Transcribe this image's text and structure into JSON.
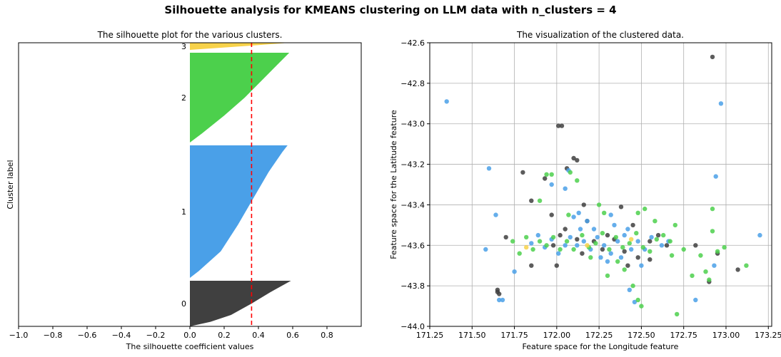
{
  "figure": {
    "suptitle": "Silhouette analysis for KMEANS clustering on LLM data with n_clusters = 4"
  },
  "chart_data": [
    {
      "type": "area",
      "title": "The silhouette plot for the various clusters.",
      "xlabel": "The silhouette coefficient values",
      "ylabel": "Cluster label",
      "xlim": [
        -1.0,
        1.0
      ],
      "xticks": [
        "−1.0",
        "−0.8",
        "−0.6",
        "−0.4",
        "−0.2",
        "0.0",
        "0.2",
        "0.4",
        "0.6",
        "0.8"
      ],
      "average_silhouette": 0.36,
      "clusters": [
        {
          "label": "0",
          "color": "#404040",
          "profile": [
            [
              0,
              0.0
            ],
            [
              0.1,
              0.12
            ],
            [
              0.25,
              0.24
            ],
            [
              0.5,
              0.36
            ],
            [
              0.75,
              0.47
            ],
            [
              1,
              0.59
            ]
          ]
        },
        {
          "label": "1",
          "color": "#4aa0e8",
          "profile": [
            [
              0,
              0.0
            ],
            [
              0.05,
              0.05
            ],
            [
              0.2,
              0.18
            ],
            [
              0.4,
              0.28
            ],
            [
              0.6,
              0.37
            ],
            [
              0.8,
              0.46
            ],
            [
              0.95,
              0.54
            ],
            [
              1,
              0.57
            ]
          ]
        },
        {
          "label": "2",
          "color": "#4cd04c",
          "profile": [
            [
              0,
              0.0
            ],
            [
              0.1,
              0.07
            ],
            [
              0.3,
              0.2
            ],
            [
              0.5,
              0.32
            ],
            [
              0.75,
              0.45
            ],
            [
              1,
              0.58
            ]
          ]
        },
        {
          "label": "3",
          "color": "#f7d24a",
          "profile": [
            [
              0,
              0.0
            ],
            [
              0.3,
              0.18
            ],
            [
              0.6,
              0.36
            ],
            [
              1,
              0.58
            ]
          ]
        }
      ],
      "grid": false
    },
    {
      "type": "scatter",
      "title": "The visualization of the clustered data.",
      "xlabel": "Feature space for the Longitude feature",
      "ylabel": "Feature space for the Latitude feature",
      "xlim": [
        171.25,
        173.27
      ],
      "ylim": [
        -44.0,
        -42.6
      ],
      "xticks": [
        "171.25",
        "171.50",
        "171.75",
        "172.00",
        "172.25",
        "172.50",
        "172.75",
        "173.00",
        "173.25"
      ],
      "yticks": [
        "−42.6",
        "−42.8",
        "−43.0",
        "−43.2",
        "−43.4",
        "−43.6",
        "−43.8",
        "−44.0"
      ],
      "grid": true,
      "series": [
        {
          "cluster": "0",
          "color": "#404040",
          "points": [
            [
              172.92,
              -42.67
            ],
            [
              171.65,
              -43.82
            ],
            [
              171.65,
              -43.83
            ],
            [
              171.66,
              -43.84
            ],
            [
              171.8,
              -43.24
            ],
            [
              171.85,
              -43.38
            ],
            [
              172.01,
              -43.01
            ],
            [
              172.03,
              -43.01
            ],
            [
              172.1,
              -43.17
            ],
            [
              172.12,
              -43.18
            ],
            [
              171.97,
              -43.45
            ],
            [
              171.93,
              -43.27
            ],
            [
              172.38,
              -43.41
            ],
            [
              172.3,
              -43.55
            ],
            [
              172.22,
              -43.58
            ],
            [
              172.05,
              -43.52
            ],
            [
              172.55,
              -43.58
            ],
            [
              172.65,
              -43.6
            ],
            [
              172.82,
              -43.6
            ],
            [
              172.95,
              -43.64
            ],
            [
              173.07,
              -43.72
            ],
            [
              172.9,
              -43.78
            ],
            [
              172.06,
              -43.22
            ],
            [
              171.98,
              -43.6
            ],
            [
              172.15,
              -43.64
            ],
            [
              172.4,
              -43.63
            ],
            [
              172.48,
              -43.66
            ],
            [
              172.18,
              -43.48
            ],
            [
              172.12,
              -43.57
            ],
            [
              172.34,
              -43.57
            ],
            [
              171.7,
              -43.56
            ],
            [
              171.85,
              -43.7
            ],
            [
              172.6,
              -43.55
            ],
            [
              172.42,
              -43.7
            ],
            [
              172.02,
              -43.55
            ],
            [
              172.27,
              -43.62
            ],
            [
              172.55,
              -43.67
            ],
            [
              172.16,
              -43.4
            ],
            [
              172.0,
              -43.7
            ],
            [
              172.45,
              -43.5
            ]
          ]
        },
        {
          "cluster": "1",
          "color": "#4aa0e8",
          "points": [
            [
              171.35,
              -42.89
            ],
            [
              172.97,
              -42.9
            ],
            [
              172.94,
              -43.26
            ],
            [
              171.6,
              -43.22
            ],
            [
              171.64,
              -43.45
            ],
            [
              173.2,
              -43.55
            ],
            [
              171.66,
              -43.87
            ],
            [
              171.68,
              -43.87
            ],
            [
              171.58,
              -43.62
            ],
            [
              171.97,
              -43.3
            ],
            [
              172.05,
              -43.32
            ],
            [
              172.07,
              -43.23
            ],
            [
              172.13,
              -43.44
            ],
            [
              172.32,
              -43.45
            ],
            [
              172.43,
              -43.82
            ],
            [
              172.46,
              -43.88
            ],
            [
              172.5,
              -43.7
            ],
            [
              172.82,
              -43.87
            ],
            [
              172.93,
              -43.7
            ],
            [
              171.75,
              -43.73
            ],
            [
              172.08,
              -43.56
            ],
            [
              172.12,
              -43.6
            ],
            [
              172.16,
              -43.58
            ],
            [
              172.2,
              -43.62
            ],
            [
              172.24,
              -43.56
            ],
            [
              172.28,
              -43.6
            ],
            [
              172.32,
              -43.64
            ],
            [
              172.36,
              -43.58
            ],
            [
              172.4,
              -43.55
            ],
            [
              172.44,
              -43.62
            ],
            [
              172.05,
              -43.6
            ],
            [
              172.01,
              -43.64
            ],
            [
              171.97,
              -43.57
            ],
            [
              171.93,
              -43.61
            ],
            [
              171.89,
              -43.55
            ],
            [
              171.85,
              -43.59
            ],
            [
              172.48,
              -43.58
            ],
            [
              172.52,
              -43.62
            ],
            [
              172.56,
              -43.56
            ],
            [
              172.14,
              -43.52
            ],
            [
              172.18,
              -43.48
            ],
            [
              172.1,
              -43.46
            ],
            [
              172.22,
              -43.52
            ],
            [
              172.26,
              -43.66
            ],
            [
              172.3,
              -43.68
            ],
            [
              172.38,
              -43.66
            ],
            [
              172.42,
              -43.52
            ],
            [
              172.34,
              -43.5
            ],
            [
              172.62,
              -43.6
            ],
            [
              172.66,
              -43.58
            ]
          ]
        },
        {
          "cluster": "2",
          "color": "#4cd04c",
          "points": [
            [
              172.71,
              -43.94
            ],
            [
              172.95,
              -43.63
            ],
            [
              172.99,
              -43.61
            ],
            [
              173.12,
              -43.7
            ],
            [
              172.88,
              -43.73
            ],
            [
              172.9,
              -43.77
            ],
            [
              172.85,
              -43.65
            ],
            [
              172.92,
              -43.42
            ],
            [
              172.92,
              -43.53
            ],
            [
              172.8,
              -43.75
            ],
            [
              172.75,
              -43.62
            ],
            [
              172.68,
              -43.65
            ],
            [
              172.5,
              -43.9
            ],
            [
              172.48,
              -43.87
            ],
            [
              172.45,
              -43.8
            ],
            [
              172.4,
              -43.72
            ],
            [
              172.3,
              -43.75
            ],
            [
              172.25,
              -43.4
            ],
            [
              172.12,
              -43.28
            ],
            [
              172.08,
              -43.24
            ],
            [
              171.97,
              -43.25
            ],
            [
              171.94,
              -43.25
            ],
            [
              171.9,
              -43.38
            ],
            [
              172.07,
              -43.45
            ],
            [
              172.15,
              -43.55
            ],
            [
              172.19,
              -43.61
            ],
            [
              172.23,
              -43.59
            ],
            [
              172.27,
              -43.54
            ],
            [
              172.31,
              -43.62
            ],
            [
              172.35,
              -43.56
            ],
            [
              172.39,
              -43.61
            ],
            [
              172.43,
              -43.59
            ],
            [
              172.47,
              -43.54
            ],
            [
              172.51,
              -43.61
            ],
            [
              172.55,
              -43.63
            ],
            [
              172.59,
              -43.57
            ],
            [
              172.63,
              -43.55
            ],
            [
              172.67,
              -43.58
            ],
            [
              172.1,
              -43.62
            ],
            [
              172.06,
              -43.58
            ],
            [
              172.02,
              -43.62
            ],
            [
              171.98,
              -43.56
            ],
            [
              171.94,
              -43.6
            ],
            [
              171.9,
              -43.58
            ],
            [
              171.86,
              -43.62
            ],
            [
              171.82,
              -43.56
            ],
            [
              171.78,
              -43.64
            ],
            [
              171.74,
              -43.58
            ],
            [
              172.2,
              -43.66
            ],
            [
              172.36,
              -43.68
            ],
            [
              172.28,
              -43.44
            ],
            [
              172.48,
              -43.44
            ],
            [
              172.52,
              -43.42
            ],
            [
              172.58,
              -43.48
            ],
            [
              172.7,
              -43.5
            ]
          ]
        },
        {
          "cluster": "3",
          "color": "#f7d24a",
          "points": [
            [
              172.44,
              -43.57
            ],
            [
              171.82,
              -43.61
            ],
            [
              172.18,
              -43.6
            ]
          ]
        }
      ]
    }
  ]
}
